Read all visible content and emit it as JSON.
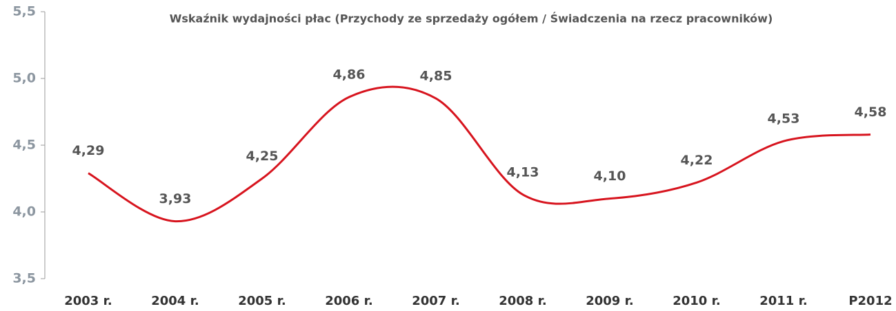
{
  "chart_data": {
    "type": "line",
    "title": "Wskaźnik wydajności płac (Przychody ze sprzedaży ogółem / Świadczenia na rzecz pracowników)",
    "categories": [
      "2003 r.",
      "2004 r.",
      "2005 r.",
      "2006 r.",
      "2007 r.",
      "2008 r.",
      "2009 r.",
      "2010 r.",
      "2011 r.",
      "P2012"
    ],
    "series": [
      {
        "name": "Wskaźnik wydajności płac",
        "color": "#d7141e",
        "values": [
          4.29,
          3.93,
          4.25,
          4.86,
          4.85,
          4.13,
          4.1,
          4.22,
          4.53,
          4.58
        ],
        "value_labels": [
          "4,29",
          "3,93",
          "4,25",
          "4,86",
          "4,85",
          "4,13",
          "4,10",
          "4,22",
          "4,53",
          "4,58"
        ]
      }
    ],
    "ylim": [
      3.5,
      5.5
    ],
    "yticks": [
      {
        "value": 3.5,
        "label": "3,5"
      },
      {
        "value": 4.0,
        "label": "4,0"
      },
      {
        "value": 4.5,
        "label": "4,5"
      },
      {
        "value": 5.0,
        "label": "5,0"
      },
      {
        "value": 5.5,
        "label": "5,5"
      }
    ],
    "grid": false
  }
}
